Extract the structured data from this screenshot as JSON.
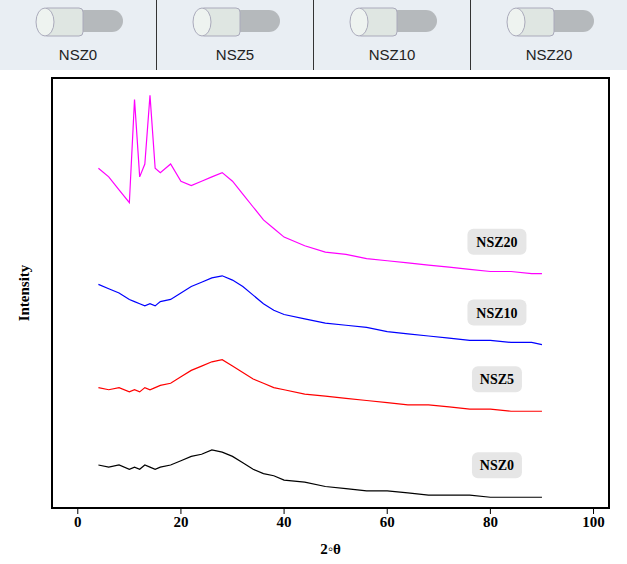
{
  "chart_data": {
    "type": "line",
    "x_label": "2◦θ",
    "y_label": "Intensity",
    "annotations": [
      "NSZ0",
      "NSZ5",
      "NSZ10",
      "NSZ20"
    ],
    "x": [
      4,
      6,
      8,
      10,
      11,
      12,
      13,
      14,
      15,
      16,
      18,
      20,
      22,
      24,
      26,
      28,
      30,
      32,
      34,
      36,
      38,
      40,
      44,
      48,
      52,
      56,
      60,
      64,
      68,
      72,
      76,
      80,
      84,
      88,
      90
    ],
    "series": [
      {
        "name": "NSZ0",
        "color": "#000000",
        "values": [
          10,
          9.5,
          10,
          9,
          9.5,
          9,
          10,
          9.5,
          9,
          9.5,
          10,
          11,
          12,
          12.5,
          13.5,
          13,
          12,
          10.5,
          9,
          8,
          7.5,
          6.5,
          6,
          5,
          4.5,
          4,
          4,
          3.5,
          3,
          3,
          3,
          2.5,
          2.5,
          2.5,
          2.5
        ]
      },
      {
        "name": "NSZ5",
        "color": "#ff0000",
        "values": [
          28,
          27.5,
          28,
          27,
          27.5,
          27,
          28,
          27.5,
          28,
          28.5,
          29,
          30.5,
          32,
          33,
          34,
          34.5,
          33,
          31.5,
          30,
          29,
          28,
          27.5,
          26.5,
          26,
          25.5,
          25,
          24.5,
          24,
          24,
          23.5,
          23,
          23,
          22.5,
          22.5,
          22.5
        ]
      },
      {
        "name": "NSZ10",
        "color": "#0000ff",
        "values": [
          52,
          51,
          50,
          48.5,
          48,
          47.5,
          47,
          47.5,
          47,
          48,
          48.5,
          50,
          51.5,
          52.5,
          53.5,
          54,
          53,
          51.5,
          49.5,
          47.5,
          46,
          45,
          44,
          43,
          42.5,
          42,
          41,
          40.5,
          40,
          39.5,
          39,
          39,
          38.5,
          38.5,
          38
        ]
      },
      {
        "name": "NSZ20",
        "color": "#ff00ff",
        "values": [
          79,
          77,
          74,
          71,
          95,
          77,
          80,
          96,
          79,
          78,
          80,
          76,
          75,
          76,
          77,
          78,
          76,
          73,
          70,
          67,
          65,
          63,
          61,
          59.5,
          59,
          58,
          57.5,
          57,
          56.5,
          56,
          55.5,
          55,
          55,
          54.5,
          54.5
        ]
      }
    ],
    "xlim": [
      -5,
      103
    ],
    "xticks": [
      0,
      20,
      40,
      60,
      80,
      100
    ],
    "ylim": [
      0,
      100
    ],
    "tick_labels": "x",
    "grid": false
  }
}
